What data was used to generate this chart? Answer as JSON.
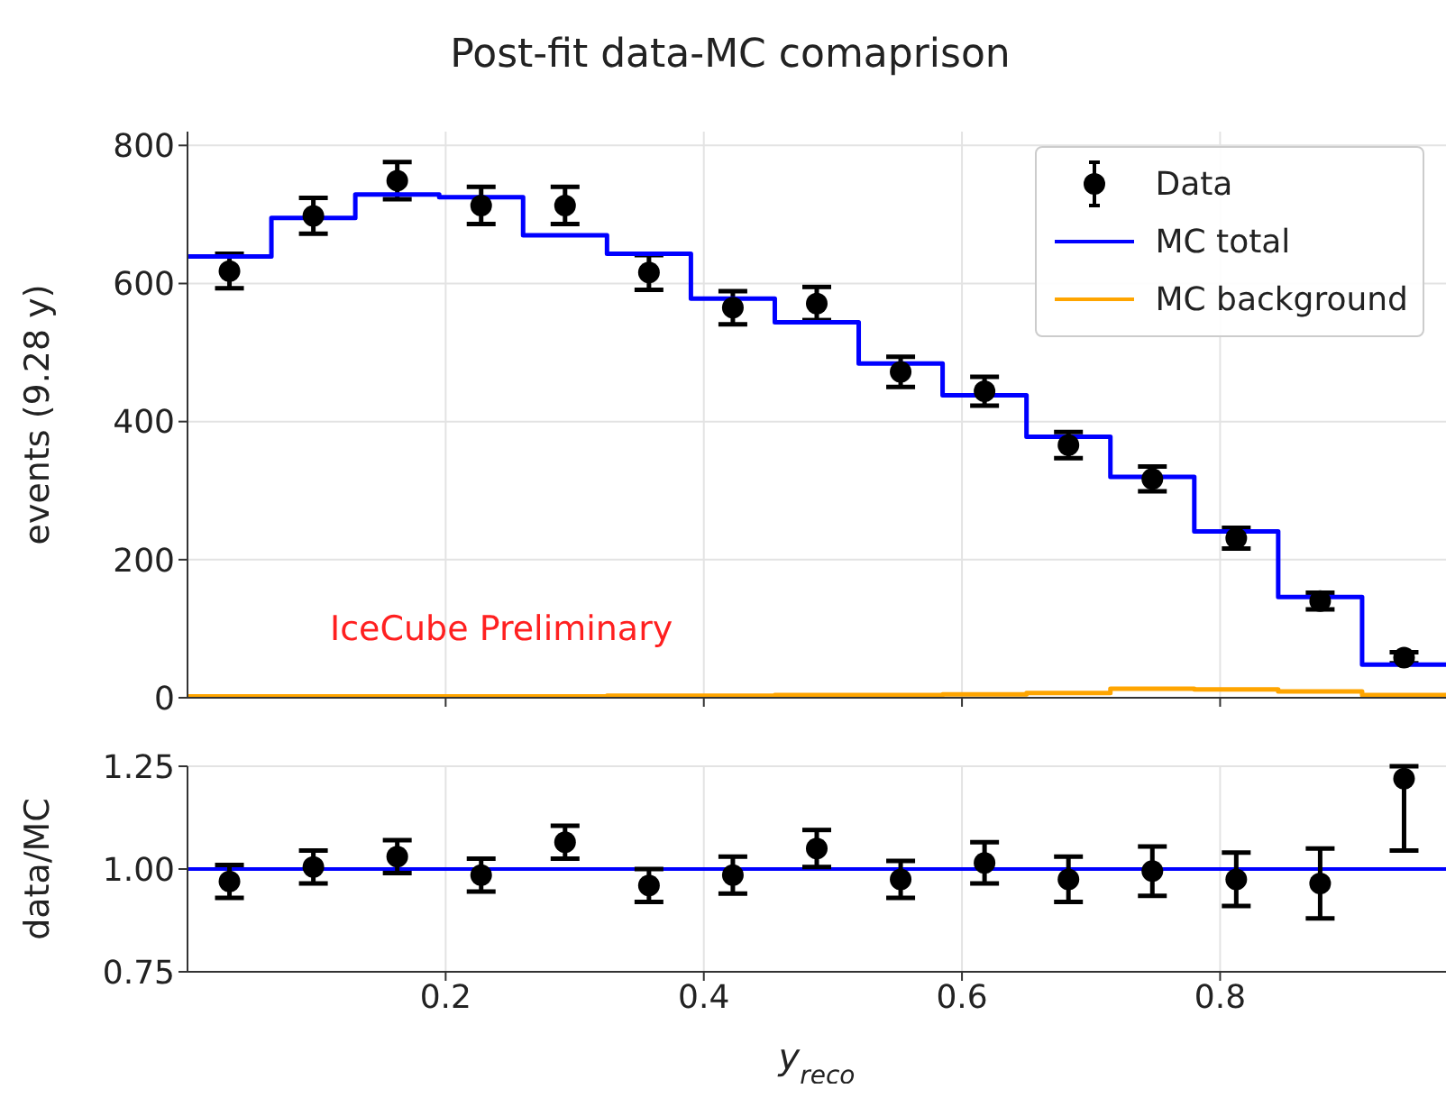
{
  "chart_data": [
    {
      "type": "step",
      "title": "Post-fit data-MC comaprison",
      "ylabel": "events (9.28 y)",
      "annotations": [
        "IceCube Preliminary"
      ],
      "xlim": [
        0,
        0.975
      ],
      "xticks": [
        {
          "value": 0.2,
          "label": null
        },
        {
          "value": 0.4,
          "label": null
        },
        {
          "value": 0.6,
          "label": null
        },
        {
          "value": 0.8,
          "label": null
        }
      ],
      "ylim": [
        0,
        820
      ],
      "yticks": [
        0,
        200,
        400,
        600,
        800
      ],
      "tick_labels": "y",
      "grid": true,
      "legend": "top right",
      "series": [
        {
          "name": "Data",
          "type": "scatter",
          "marker": "circle",
          "color": "#000000",
          "x": [
            0.0325,
            0.0975,
            0.1625,
            0.2275,
            0.2925,
            0.3575,
            0.4225,
            0.4875,
            0.5525,
            0.6175,
            0.6825,
            0.7475,
            0.8125,
            0.8775,
            0.9425
          ],
          "values": [
            618,
            698,
            749,
            713,
            713,
            616,
            565,
            571,
            472,
            444,
            366,
            317,
            231,
            140,
            58
          ],
          "errors": [
            25,
            26,
            27,
            27,
            27,
            25,
            24,
            24,
            22,
            21,
            19,
            18,
            15,
            12,
            8
          ]
        },
        {
          "name": "MC total",
          "type": "histogram",
          "color": "#0000ff",
          "bins": [
            0,
            0.065,
            0.13,
            0.195,
            0.26,
            0.325,
            0.39,
            0.455,
            0.52,
            0.585,
            0.65,
            0.715,
            0.78,
            0.845,
            0.91,
            0.975
          ],
          "values": [
            639,
            695,
            729,
            725,
            670,
            643,
            578,
            544,
            484,
            438,
            378,
            320,
            241,
            146,
            48
          ]
        },
        {
          "name": "MC background",
          "type": "histogram",
          "color": "#ffa500",
          "bins": [
            0,
            0.065,
            0.13,
            0.195,
            0.26,
            0.325,
            0.39,
            0.455,
            0.52,
            0.585,
            0.65,
            0.715,
            0.78,
            0.845,
            0.91,
            0.975
          ],
          "values": [
            2,
            2,
            2,
            2,
            2,
            3,
            3,
            4,
            4,
            5,
            7,
            13,
            12,
            9,
            4
          ]
        }
      ]
    },
    {
      "type": "scatter",
      "xlabel": "y$_{reco}$",
      "ylabel": "data/MC",
      "xlim": [
        0,
        0.975
      ],
      "xticks": [
        0.2,
        0.4,
        0.6,
        0.8
      ],
      "ylim": [
        0.75,
        1.25
      ],
      "yticks": [
        0.75,
        {
          "value": 1,
          "label": "1.00"
        },
        1.25
      ],
      "grid": true,
      "marker": "circle",
      "ref_lines": [
        {
          "axis": "y",
          "value": 1,
          "color": "#0000ff"
        }
      ],
      "x": [
        0.0325,
        0.0975,
        0.1625,
        0.2275,
        0.2925,
        0.3575,
        0.4225,
        0.4875,
        0.5525,
        0.6175,
        0.6825,
        0.7475,
        0.8125,
        0.8775,
        0.9425
      ],
      "series": [
        {
          "color": "#000000",
          "values": [
            0.97,
            1.005,
            1.03,
            0.985,
            1.065,
            0.96,
            0.985,
            1.05,
            0.975,
            1.015,
            0.975,
            0.995,
            0.975,
            0.965,
            1.22
          ],
          "errors": [
            0.04,
            0.04,
            0.04,
            0.04,
            0.04,
            0.04,
            0.045,
            0.045,
            0.045,
            0.05,
            0.055,
            0.06,
            0.065,
            0.085,
            [
              1.045,
              1.25
            ]
          ]
        }
      ]
    }
  ]
}
